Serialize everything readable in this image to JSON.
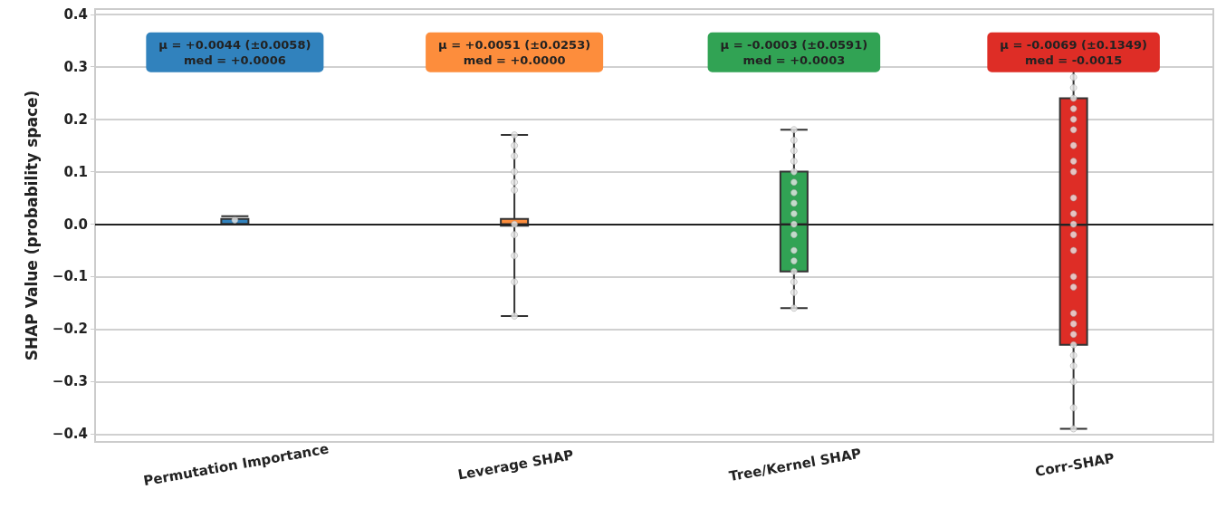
{
  "chart_data": {
    "type": "box",
    "ylabel": "SHAP Value (probability space)",
    "categories": [
      "Permutation Importance",
      "Leverage SHAP",
      "Tree/Kernel SHAP",
      "Corr-SHAP"
    ],
    "boxes": [
      {
        "low": 0.0,
        "q1": 0.0,
        "median": 0.0006,
        "q3": 0.01,
        "high": 0.015
      },
      {
        "low": -0.175,
        "q1": -0.003,
        "median": 0.0,
        "q3": 0.01,
        "high": 0.17
      },
      {
        "low": -0.16,
        "q1": -0.09,
        "median": 0.0003,
        "q3": 0.1,
        "high": 0.18
      },
      {
        "low": -0.39,
        "q1": -0.23,
        "median": -0.0015,
        "q3": 0.24,
        "high": 0.3
      }
    ],
    "colors": [
      "#3182bd",
      "#fd8d3c",
      "#31a354",
      "#de2d26"
    ],
    "series": [
      {
        "type": "scatter",
        "color": "#e8e8e8",
        "x": [
          "Permutation Importance"
        ],
        "values": [
          0.008
        ]
      },
      {
        "type": "scatter",
        "color": "#e8e8e8",
        "x": [
          "Leverage SHAP",
          "Leverage SHAP",
          "Leverage SHAP",
          "Leverage SHAP",
          "Leverage SHAP",
          "Leverage SHAP",
          "Leverage SHAP",
          "Leverage SHAP",
          "Leverage SHAP",
          "Leverage SHAP",
          "Leverage SHAP"
        ],
        "values": [
          0.17,
          0.15,
          0.13,
          0.1,
          0.08,
          0.065,
          0.0,
          -0.02,
          -0.06,
          -0.11,
          -0.175
        ]
      },
      {
        "type": "scatter",
        "color": "#e8e8e8",
        "x": [
          "Tree/Kernel SHAP",
          "Tree/Kernel SHAP",
          "Tree/Kernel SHAP",
          "Tree/Kernel SHAP",
          "Tree/Kernel SHAP",
          "Tree/Kernel SHAP",
          "Tree/Kernel SHAP",
          "Tree/Kernel SHAP",
          "Tree/Kernel SHAP",
          "Tree/Kernel SHAP",
          "Tree/Kernel SHAP",
          "Tree/Kernel SHAP",
          "Tree/Kernel SHAP",
          "Tree/Kernel SHAP",
          "Tree/Kernel SHAP",
          "Tree/Kernel SHAP",
          "Tree/Kernel SHAP"
        ],
        "values": [
          0.18,
          0.16,
          0.14,
          0.12,
          0.1,
          0.08,
          0.06,
          0.04,
          0.02,
          0.0,
          -0.02,
          -0.05,
          -0.07,
          -0.09,
          -0.11,
          -0.13,
          -0.16
        ]
      },
      {
        "type": "scatter",
        "color": "#e8e8e8",
        "x": [
          "Corr-SHAP",
          "Corr-SHAP",
          "Corr-SHAP",
          "Corr-SHAP",
          "Corr-SHAP",
          "Corr-SHAP",
          "Corr-SHAP",
          "Corr-SHAP",
          "Corr-SHAP",
          "Corr-SHAP",
          "Corr-SHAP",
          "Corr-SHAP",
          "Corr-SHAP",
          "Corr-SHAP",
          "Corr-SHAP",
          "Corr-SHAP",
          "Corr-SHAP",
          "Corr-SHAP",
          "Corr-SHAP",
          "Corr-SHAP",
          "Corr-SHAP",
          "Corr-SHAP",
          "Corr-SHAP",
          "Corr-SHAP",
          "Corr-SHAP"
        ],
        "values": [
          0.28,
          0.26,
          0.24,
          0.22,
          0.2,
          0.18,
          0.15,
          0.12,
          0.1,
          0.05,
          0.02,
          0.0,
          -0.02,
          -0.05,
          -0.1,
          -0.12,
          -0.17,
          -0.19,
          -0.21,
          -0.23,
          -0.25,
          -0.27,
          -0.3,
          -0.35,
          -0.39
        ]
      }
    ],
    "annotations": [
      "μ = +0.0044 (±0.0058)\nmed = +0.0006",
      "μ = +0.0051 (±0.0253)\nmed = +0.0000",
      "μ = -0.0003 (±0.0591)\nmed = +0.0003",
      "μ = -0.0069 (±0.1349)\nmed = -0.0015"
    ],
    "ref_lines": [
      {
        "axis": "y",
        "value": 0,
        "color": "#222222"
      }
    ],
    "ylim": [
      -0.415,
      0.41
    ],
    "yticks": [
      {
        "value": -0.4,
        "label": "−0.4"
      },
      {
        "value": -0.3,
        "label": "−0.3"
      },
      {
        "value": -0.2,
        "label": "−0.2"
      },
      {
        "value": -0.1,
        "label": "−0.1"
      },
      {
        "value": 0,
        "label": "0.0"
      },
      {
        "value": 0.1,
        "label": "0.1"
      },
      {
        "value": 0.2,
        "label": "0.2"
      },
      {
        "value": 0.3,
        "label": "0.3"
      },
      {
        "value": 0.4,
        "label": "0.4"
      }
    ],
    "grid": "y",
    "marker": "circle"
  }
}
